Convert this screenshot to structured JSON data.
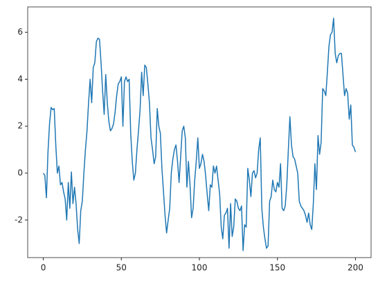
{
  "chart_data": {
    "type": "line",
    "color": "#1f77b4",
    "x": [
      0,
      1,
      2,
      3,
      4,
      5,
      6,
      7,
      8,
      9,
      10,
      11,
      12,
      13,
      14,
      15,
      16,
      17,
      18,
      19,
      20,
      21,
      22,
      23,
      24,
      25,
      26,
      27,
      28,
      29,
      30,
      31,
      32,
      33,
      34,
      35,
      36,
      37,
      38,
      39,
      40,
      41,
      42,
      43,
      44,
      45,
      46,
      47,
      48,
      49,
      50,
      51,
      52,
      53,
      54,
      55,
      56,
      57,
      58,
      59,
      60,
      61,
      62,
      63,
      64,
      65,
      66,
      67,
      68,
      69,
      70,
      71,
      72,
      73,
      74,
      75,
      76,
      77,
      78,
      79,
      80,
      81,
      82,
      83,
      84,
      85,
      86,
      87,
      88,
      89,
      90,
      91,
      92,
      93,
      94,
      95,
      96,
      97,
      98,
      99,
      100,
      101,
      102,
      103,
      104,
      105,
      106,
      107,
      108,
      109,
      110,
      111,
      112,
      113,
      114,
      115,
      116,
      117,
      118,
      119,
      120,
      121,
      122,
      123,
      124,
      125,
      126,
      127,
      128,
      129,
      130,
      131,
      132,
      133,
      134,
      135,
      136,
      137,
      138,
      139,
      140,
      141,
      142,
      143,
      144,
      145,
      146,
      147,
      148,
      149,
      150,
      151,
      152,
      153,
      154,
      155,
      156,
      157,
      158,
      159,
      160,
      161,
      162,
      163,
      164,
      165,
      166,
      167,
      168,
      169,
      170,
      171,
      172,
      173,
      174,
      175,
      176,
      177,
      178,
      179,
      180,
      181,
      182,
      183,
      184,
      185,
      186,
      187,
      188,
      189,
      190,
      191,
      192,
      193,
      194,
      195,
      196,
      197,
      198,
      199,
      200
    ],
    "values": [
      0,
      -0.1,
      -1.05,
      0.9,
      2.1,
      2.8,
      2.7,
      2.75,
      1.2,
      0.0,
      0.3,
      -0.5,
      -0.4,
      -0.8,
      -1.1,
      -2.0,
      -0.4,
      -1.5,
      0.05,
      -1.3,
      -0.6,
      -1.3,
      -2.4,
      -3.0,
      -1.6,
      -1.2,
      0.0,
      1.0,
      1.8,
      3.0,
      4.0,
      3.0,
      4.5,
      4.7,
      5.6,
      5.75,
      5.7,
      4.7,
      3.5,
      2.5,
      4.2,
      3.0,
      2.2,
      1.8,
      1.9,
      2.1,
      2.6,
      3.3,
      3.8,
      3.9,
      4.1,
      2.0,
      3.9,
      4.1,
      3.9,
      4.0,
      1.7,
      0.5,
      -0.3,
      0.0,
      1.0,
      1.8,
      2.7,
      4.3,
      3.3,
      4.6,
      4.5,
      3.8,
      3.0,
      1.5,
      1.0,
      0.4,
      0.7,
      2.75,
      2.0,
      1.7,
      0.2,
      -0.8,
      -1.8,
      -2.55,
      -2.0,
      -1.5,
      0.0,
      0.6,
      1.0,
      1.2,
      0.5,
      -0.4,
      0.7,
      1.8,
      2.0,
      1.5,
      -0.6,
      0.5,
      -0.5,
      -1.9,
      -1.5,
      -0.3,
      0.5,
      1.5,
      0.2,
      0.4,
      0.8,
      0.5,
      -0.1,
      -0.9,
      -1.6,
      -0.5,
      -0.6,
      0.3,
      0.0,
      0.3,
      -0.3,
      -0.9,
      -2.3,
      -2.8,
      -1.8,
      -1.7,
      -1.5,
      -3.2,
      -1.3,
      -2.7,
      -2.3,
      -1.1,
      -1.2,
      -1.5,
      -1.6,
      -1.4,
      -3.3,
      -2.2,
      -2.3,
      0.2,
      -0.3,
      -1.0,
      0.0,
      0.1,
      -0.2,
      0.0,
      1.0,
      1.5,
      -1.5,
      -2.3,
      -2.8,
      -3.2,
      -3.1,
      -1.2,
      -1.0,
      -0.3,
      -0.7,
      -0.8,
      -0.4,
      -0.6,
      0.4,
      -1.5,
      -1.6,
      -1.4,
      -0.5,
      1.0,
      2.4,
      1.2,
      0.7,
      0.6,
      0.3,
      0.0,
      -1.2,
      -1.4,
      -1.5,
      -1.6,
      -1.8,
      -2.1,
      -1.7,
      -2.2,
      -2.4,
      -1.3,
      0.4,
      -0.7,
      1.6,
      0.8,
      1.3,
      3.6,
      3.5,
      3.3,
      4.3,
      5.4,
      5.9,
      6.0,
      6.6,
      5.1,
      4.7,
      5.0,
      5.1,
      5.1,
      4.2,
      3.3,
      3.6,
      3.4,
      2.3,
      2.9,
      1.2,
      1.1,
      0.9
    ],
    "xlim": [
      -10,
      210
    ],
    "ylim": [
      -3.6,
      7.08
    ],
    "xticks": [
      0,
      50,
      100,
      150,
      200
    ],
    "yticks": [
      -2,
      0,
      2,
      4,
      6
    ]
  }
}
